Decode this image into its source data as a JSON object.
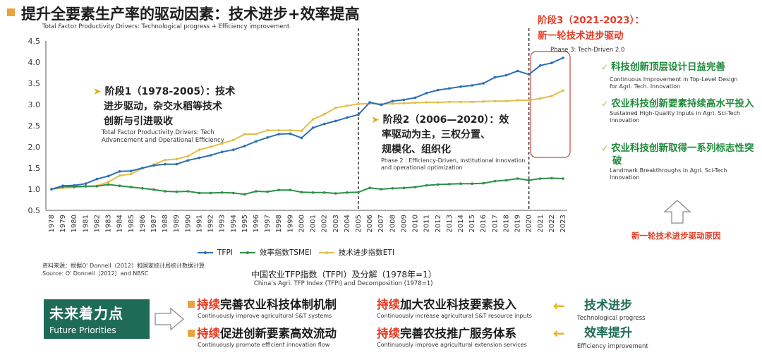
{
  "header": {
    "title": "提升全要素生产率的驱动因素：技术进步+效率提高",
    "subtitle": "Total Factor Productivity Drivers: Technological progress + Efficiency improvement"
  },
  "colors": {
    "tfpi": "#2c6fb5",
    "tsmei": "#2e8f47",
    "eti": "#e2bf4a",
    "accent_red": "#e33c25",
    "accent_green": "#1f8a3a",
    "accent_orange": "#e8a33d",
    "box_green": "#1e6b57"
  },
  "chart_data": {
    "type": "line",
    "title": "中国农业TFP指数（TFPI）及分解（1978年=1）",
    "title_en": "China’s Agri. TFP Index (TFPI) and Decomposition (1978=1)",
    "xlabel": "",
    "ylabel": "",
    "ylim": [
      0.5,
      4.5
    ],
    "yticks": [
      "4.5",
      "4.0",
      "3.5",
      "3.0",
      "2.5",
      "2.0",
      "1.5",
      "1.0",
      "0.5"
    ],
    "ytick_values": [
      4.5,
      4.0,
      3.5,
      3.0,
      2.5,
      2.0,
      1.5,
      1.0,
      0.5
    ],
    "categories": [
      "1978",
      "1979",
      "1980",
      "1981",
      "1982",
      "1983",
      "1984",
      "1985",
      "1986",
      "1987",
      "1988",
      "1989",
      "1990",
      "1991",
      "1992",
      "1993",
      "1994",
      "1995",
      "1996",
      "1997",
      "1998",
      "1999",
      "2000",
      "2001",
      "2002",
      "2003",
      "2004",
      "2005",
      "2006",
      "2007",
      "2008",
      "2009",
      "2010",
      "2011",
      "2012",
      "2013",
      "2014",
      "2015",
      "2016",
      "2017",
      "2018",
      "2019",
      "2020",
      "2021",
      "2022",
      "2023"
    ],
    "series": [
      {
        "name": "TFPI",
        "color": "#2c6fb5",
        "values": [
          1.0,
          1.08,
          1.09,
          1.13,
          1.24,
          1.31,
          1.42,
          1.43,
          1.5,
          1.56,
          1.59,
          1.59,
          1.68,
          1.74,
          1.8,
          1.88,
          1.93,
          2.02,
          2.13,
          2.22,
          2.3,
          2.31,
          2.21,
          2.45,
          2.54,
          2.61,
          2.69,
          2.76,
          3.05,
          2.99,
          3.08,
          3.11,
          3.16,
          3.27,
          3.34,
          3.38,
          3.42,
          3.45,
          3.5,
          3.64,
          3.69,
          3.79,
          3.71,
          3.92,
          3.98,
          4.1
        ]
      },
      {
        "name": "效率指数TSMEI",
        "color": "#2e8f47",
        "values": [
          1.0,
          1.06,
          1.06,
          1.07,
          1.07,
          1.11,
          1.08,
          1.05,
          1.02,
          0.99,
          0.95,
          0.94,
          0.95,
          0.91,
          0.91,
          0.92,
          0.91,
          0.88,
          0.95,
          0.94,
          0.98,
          0.98,
          0.93,
          0.92,
          0.92,
          0.9,
          0.92,
          0.93,
          1.03,
          1.0,
          1.02,
          1.03,
          1.05,
          1.09,
          1.11,
          1.12,
          1.13,
          1.13,
          1.14,
          1.19,
          1.21,
          1.25,
          1.21,
          1.25,
          1.26,
          1.25
        ]
      },
      {
        "name": "技术进步指数ETI",
        "color": "#e2bf4a",
        "values": [
          1.0,
          1.03,
          1.04,
          1.06,
          1.08,
          1.17,
          1.32,
          1.36,
          1.49,
          1.58,
          1.69,
          1.71,
          1.78,
          1.93,
          2.0,
          2.08,
          2.16,
          2.3,
          2.3,
          2.39,
          2.39,
          2.39,
          2.38,
          2.65,
          2.77,
          2.92,
          2.97,
          3.01,
          3.02,
          3.01,
          3.02,
          3.03,
          3.04,
          3.05,
          3.05,
          3.06,
          3.06,
          3.06,
          3.07,
          3.08,
          3.08,
          3.1,
          3.1,
          3.14,
          3.2,
          3.33
        ]
      }
    ],
    "vlines": [
      "2005",
      "2020"
    ],
    "annotations": {
      "phase1": {
        "line1": "阶段1（1978-2005）：技术",
        "line2": "进步驱动，杂交水稻等技术",
        "line3": "创新与引进吸收",
        "sub": "Total Factor Productivity Drivers: Tech Advancement and Operational Efficiency"
      },
      "phase2": {
        "line1": "阶段2（2006—2020）：效",
        "line2": "率驱动为主，三权分置、",
        "line3": "规模化、组织化",
        "sub": "Phase 2 : Efficiency-Driven, institutional innovation and operational optimization"
      },
      "phase3": {
        "line1": "阶段3（2021-2023）：",
        "line2": "新一轮技术进步驱动",
        "sub": "Phase 3: Tech-Driven 2.0"
      }
    }
  },
  "checklist": [
    {
      "title": "科技创新顶层设计日益完善",
      "sub": "Continuous Improvement in Top-Level Design for Agri. Tech. Innovation"
    },
    {
      "title": "农业科技创新要素持续高水平投入",
      "sub": "Sustained High-Quality Inputs in Agri. Sci-Tech Innovation"
    },
    {
      "title": "农业科技创新取得一系列标志性突破",
      "sub": "Landmark Breakthroughs in Agri. Sci-Tech Innovation"
    }
  ],
  "reason_label": "新一轮技术进步驱动原因",
  "source": "资料来源：根据O' Donnell（2012）和国家统计局统计数据计算 Source: O' Donnell（2012）and NBSC",
  "future": {
    "title": "未来着力点",
    "subtitle": "Future Priorities",
    "items": [
      {
        "red": "持续",
        "rest": "完善农业科技体制机制",
        "sub": "Continuously improve agricultural S&T systems"
      },
      {
        "red": "持续",
        "rest": "加大农业科技要素投入",
        "sub": "Continuously increase agricultural S&T resource inputs"
      },
      {
        "red": "持续",
        "rest": "促进创新要素高效流动",
        "sub": "Continuously promote efficient innovation flow"
      },
      {
        "red": "持续",
        "rest": "完善农技推广服务体系",
        "sub": "Continuously improve agricultural extension services"
      }
    ],
    "drivers": [
      {
        "label": "技术进步",
        "sub": "Technological progress"
      },
      {
        "label": "效率提升",
        "sub": "Efficiency improvement"
      }
    ]
  }
}
